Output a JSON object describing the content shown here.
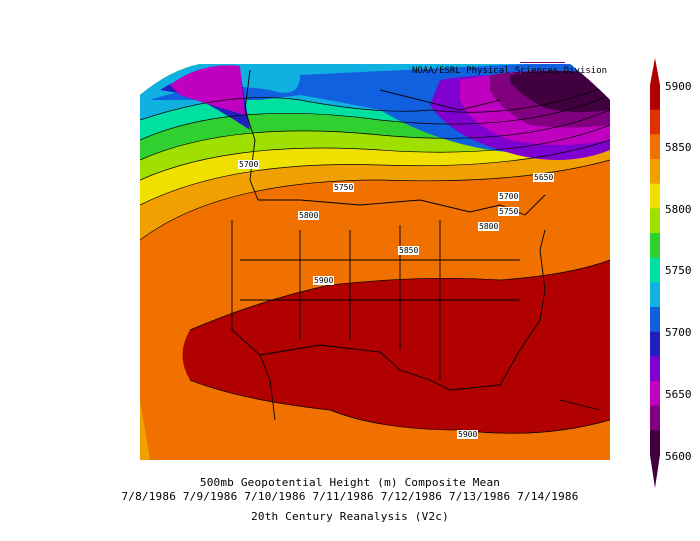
{
  "credit": "NOAA/ESRL Physical Sciences Division",
  "caption": {
    "line1": "500mb Geopotential Height (m) Composite Mean",
    "line2": "7/8/1986 7/9/1986 7/10/1986 7/11/1986 7/12/1986 7/13/1986 7/14/1986",
    "line3": "20th Century Reanalysis (V2c)"
  },
  "colorbar": {
    "ticks": [
      "5900",
      "5850",
      "5800",
      "5750",
      "5700",
      "5650",
      "5600"
    ],
    "colors": [
      "#b00000",
      "#e03000",
      "#f07000",
      "#f0a000",
      "#f0e000",
      "#a0e000",
      "#30d030",
      "#00e0a0",
      "#10b0e0",
      "#1060e0",
      "#2020c0",
      "#8000d0",
      "#c000c0",
      "#800080",
      "#400040"
    ]
  },
  "contour_labels": [
    {
      "id": "5700-west",
      "text": "5700"
    },
    {
      "id": "5750-central",
      "text": "5750"
    },
    {
      "id": "5800-west",
      "text": "5800"
    },
    {
      "id": "5850-central",
      "text": "5850"
    },
    {
      "id": "5900-west",
      "text": "5900"
    },
    {
      "id": "5650-east",
      "text": "5650"
    },
    {
      "id": "5700-east",
      "text": "5700"
    },
    {
      "id": "5750-east",
      "text": "5750"
    },
    {
      "id": "5800-east",
      "text": "5800"
    },
    {
      "id": "5900-south",
      "text": "5900"
    }
  ]
}
